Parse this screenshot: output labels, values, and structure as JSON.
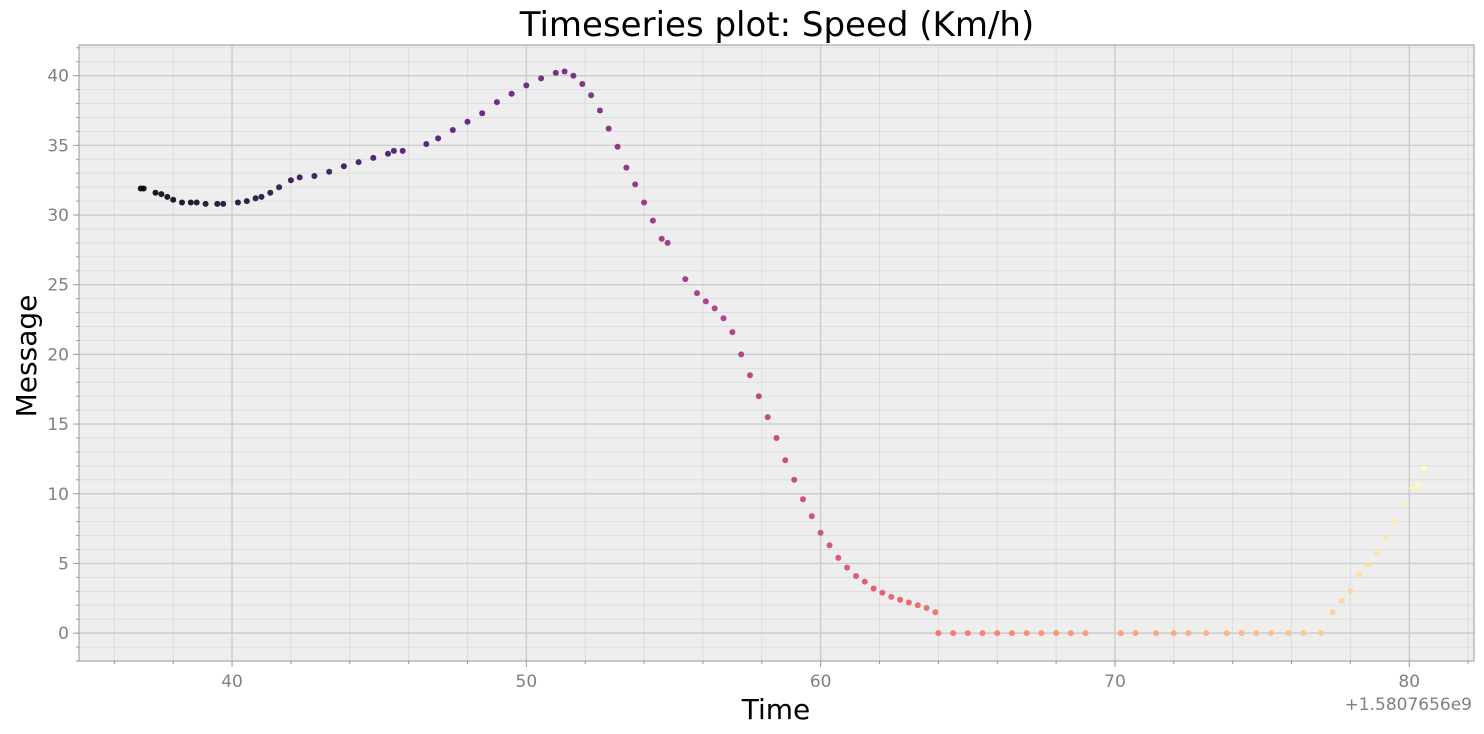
{
  "chart_data": {
    "type": "scatter",
    "title": "Timeseries plot: Speed (Km/h)",
    "xlabel": "Time",
    "ylabel": "Message",
    "x_offset_label": "+1.5807656e9",
    "xlim": [
      34.8,
      82.2
    ],
    "ylim": [
      -2,
      42.2
    ],
    "x_ticks": [
      40,
      50,
      60,
      70,
      80
    ],
    "y_ticks": [
      0,
      5,
      10,
      15,
      20,
      25,
      30,
      35,
      40
    ],
    "x_tick_labels": [
      "40",
      "50",
      "60",
      "70",
      "80"
    ],
    "y_tick_labels": [
      "0",
      "5",
      "10",
      "15",
      "20",
      "25",
      "30",
      "35",
      "40"
    ],
    "grid": true,
    "colormap": "magma",
    "background_color": "#eeeeee",
    "series": [
      {
        "points": [
          [
            36.9,
            31.9
          ],
          [
            37.0,
            31.9
          ],
          [
            37.4,
            31.6
          ],
          [
            37.6,
            31.5
          ],
          [
            37.8,
            31.3
          ],
          [
            38.0,
            31.1
          ],
          [
            38.3,
            30.9
          ],
          [
            38.6,
            30.9
          ],
          [
            38.8,
            30.9
          ],
          [
            39.1,
            30.8
          ],
          [
            39.5,
            30.8
          ],
          [
            39.7,
            30.8
          ],
          [
            40.2,
            30.9
          ],
          [
            40.5,
            31.0
          ],
          [
            40.8,
            31.2
          ],
          [
            41.0,
            31.3
          ],
          [
            41.3,
            31.6
          ],
          [
            41.6,
            32.0
          ],
          [
            42.0,
            32.5
          ],
          [
            42.3,
            32.7
          ],
          [
            42.8,
            32.8
          ],
          [
            43.3,
            33.1
          ],
          [
            43.8,
            33.5
          ],
          [
            44.3,
            33.8
          ],
          [
            44.8,
            34.1
          ],
          [
            45.3,
            34.4
          ],
          [
            45.5,
            34.6
          ],
          [
            45.8,
            34.6
          ],
          [
            46.6,
            35.1
          ],
          [
            47.0,
            35.5
          ],
          [
            47.5,
            36.1
          ],
          [
            48.0,
            36.7
          ],
          [
            48.5,
            37.3
          ],
          [
            49.0,
            38.1
          ],
          [
            49.5,
            38.7
          ],
          [
            50.0,
            39.3
          ],
          [
            50.5,
            39.8
          ],
          [
            51.0,
            40.2
          ],
          [
            51.3,
            40.3
          ],
          [
            51.6,
            40.0
          ],
          [
            51.9,
            39.4
          ],
          [
            52.2,
            38.6
          ],
          [
            52.5,
            37.5
          ],
          [
            52.8,
            36.2
          ],
          [
            53.1,
            34.9
          ],
          [
            53.4,
            33.4
          ],
          [
            53.7,
            32.2
          ],
          [
            54.0,
            30.9
          ],
          [
            54.3,
            29.6
          ],
          [
            54.6,
            28.3
          ],
          [
            54.8,
            28.0
          ],
          [
            55.4,
            25.4
          ],
          [
            55.8,
            24.4
          ],
          [
            56.1,
            23.8
          ],
          [
            56.4,
            23.3
          ],
          [
            56.7,
            22.6
          ],
          [
            57.0,
            21.6
          ],
          [
            57.3,
            20.0
          ],
          [
            57.6,
            18.5
          ],
          [
            57.9,
            17.0
          ],
          [
            58.2,
            15.5
          ],
          [
            58.5,
            14.0
          ],
          [
            58.8,
            12.4
          ],
          [
            59.1,
            11.0
          ],
          [
            59.4,
            9.6
          ],
          [
            59.7,
            8.4
          ],
          [
            60.0,
            7.2
          ],
          [
            60.3,
            6.3
          ],
          [
            60.6,
            5.4
          ],
          [
            60.9,
            4.7
          ],
          [
            61.2,
            4.1
          ],
          [
            61.5,
            3.7
          ],
          [
            61.8,
            3.2
          ],
          [
            62.1,
            2.9
          ],
          [
            62.4,
            2.6
          ],
          [
            62.7,
            2.4
          ],
          [
            63.0,
            2.2
          ],
          [
            63.3,
            2.0
          ],
          [
            63.6,
            1.8
          ],
          [
            63.9,
            1.5
          ],
          [
            64.0,
            0.0
          ],
          [
            64.5,
            0.0
          ],
          [
            65.0,
            0.0
          ],
          [
            65.5,
            0.0
          ],
          [
            66.0,
            0.0
          ],
          [
            66.5,
            0.0
          ],
          [
            67.0,
            0.0
          ],
          [
            67.5,
            0.0
          ],
          [
            68.0,
            0.0
          ],
          [
            68.5,
            0.0
          ],
          [
            69.0,
            0.0
          ],
          [
            70.2,
            0.0
          ],
          [
            70.7,
            0.0
          ],
          [
            71.4,
            0.0
          ],
          [
            72.0,
            0.0
          ],
          [
            72.5,
            0.0
          ],
          [
            73.1,
            0.0
          ],
          [
            73.8,
            0.0
          ],
          [
            74.3,
            0.0
          ],
          [
            74.8,
            0.0
          ],
          [
            75.3,
            0.0
          ],
          [
            75.9,
            0.0
          ],
          [
            76.4,
            0.0
          ],
          [
            77.0,
            0.0
          ],
          [
            77.4,
            1.5
          ],
          [
            77.7,
            2.3
          ],
          [
            78.0,
            3.0
          ],
          [
            78.3,
            4.2
          ],
          [
            78.6,
            4.9
          ],
          [
            78.9,
            5.7
          ],
          [
            79.2,
            6.8
          ],
          [
            79.5,
            8.0
          ],
          [
            79.8,
            9.2
          ],
          [
            80.1,
            10.4
          ],
          [
            80.3,
            10.6
          ],
          [
            80.5,
            11.8
          ]
        ]
      }
    ]
  }
}
